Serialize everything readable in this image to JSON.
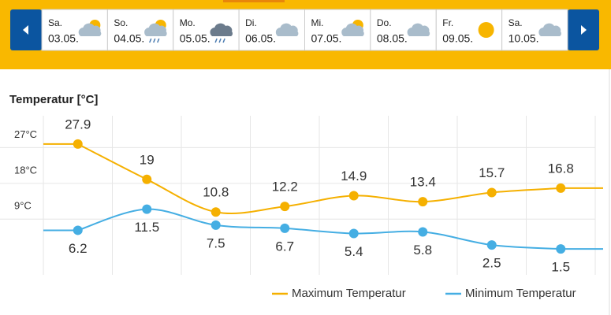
{
  "days": [
    {
      "name": "Sa.",
      "date": "03.05."
    },
    {
      "name": "So.",
      "date": "04.05."
    },
    {
      "name": "Mo.",
      "date": "05.05."
    },
    {
      "name": "Di.",
      "date": "06.05."
    },
    {
      "name": "Mi.",
      "date": "07.05."
    },
    {
      "name": "Do.",
      "date": "08.05."
    },
    {
      "name": "Fr.",
      "date": "09.05."
    },
    {
      "name": "Sa.",
      "date": "10.05."
    }
  ],
  "chart_data": {
    "type": "line",
    "title": "Temperatur [°C]",
    "series": [
      {
        "name": "Maximum Temperatur",
        "color": "#f5b000",
        "values": [
          27.9,
          19,
          10.8,
          12.2,
          14.9,
          13.4,
          15.7,
          16.8
        ]
      },
      {
        "name": "Minimum Temperatur",
        "color": "#45aee3",
        "values": [
          6.2,
          11.5,
          7.5,
          6.7,
          5.4,
          5.8,
          2.5,
          1.5
        ]
      }
    ],
    "ylim": [
      -5,
      35
    ],
    "yticks": [
      {
        "value": 9,
        "label": "9°C"
      },
      {
        "value": 18,
        "label": "18°C"
      },
      {
        "value": 27,
        "label": "27°C"
      }
    ],
    "grid": true,
    "legend": "bottom-right"
  }
}
